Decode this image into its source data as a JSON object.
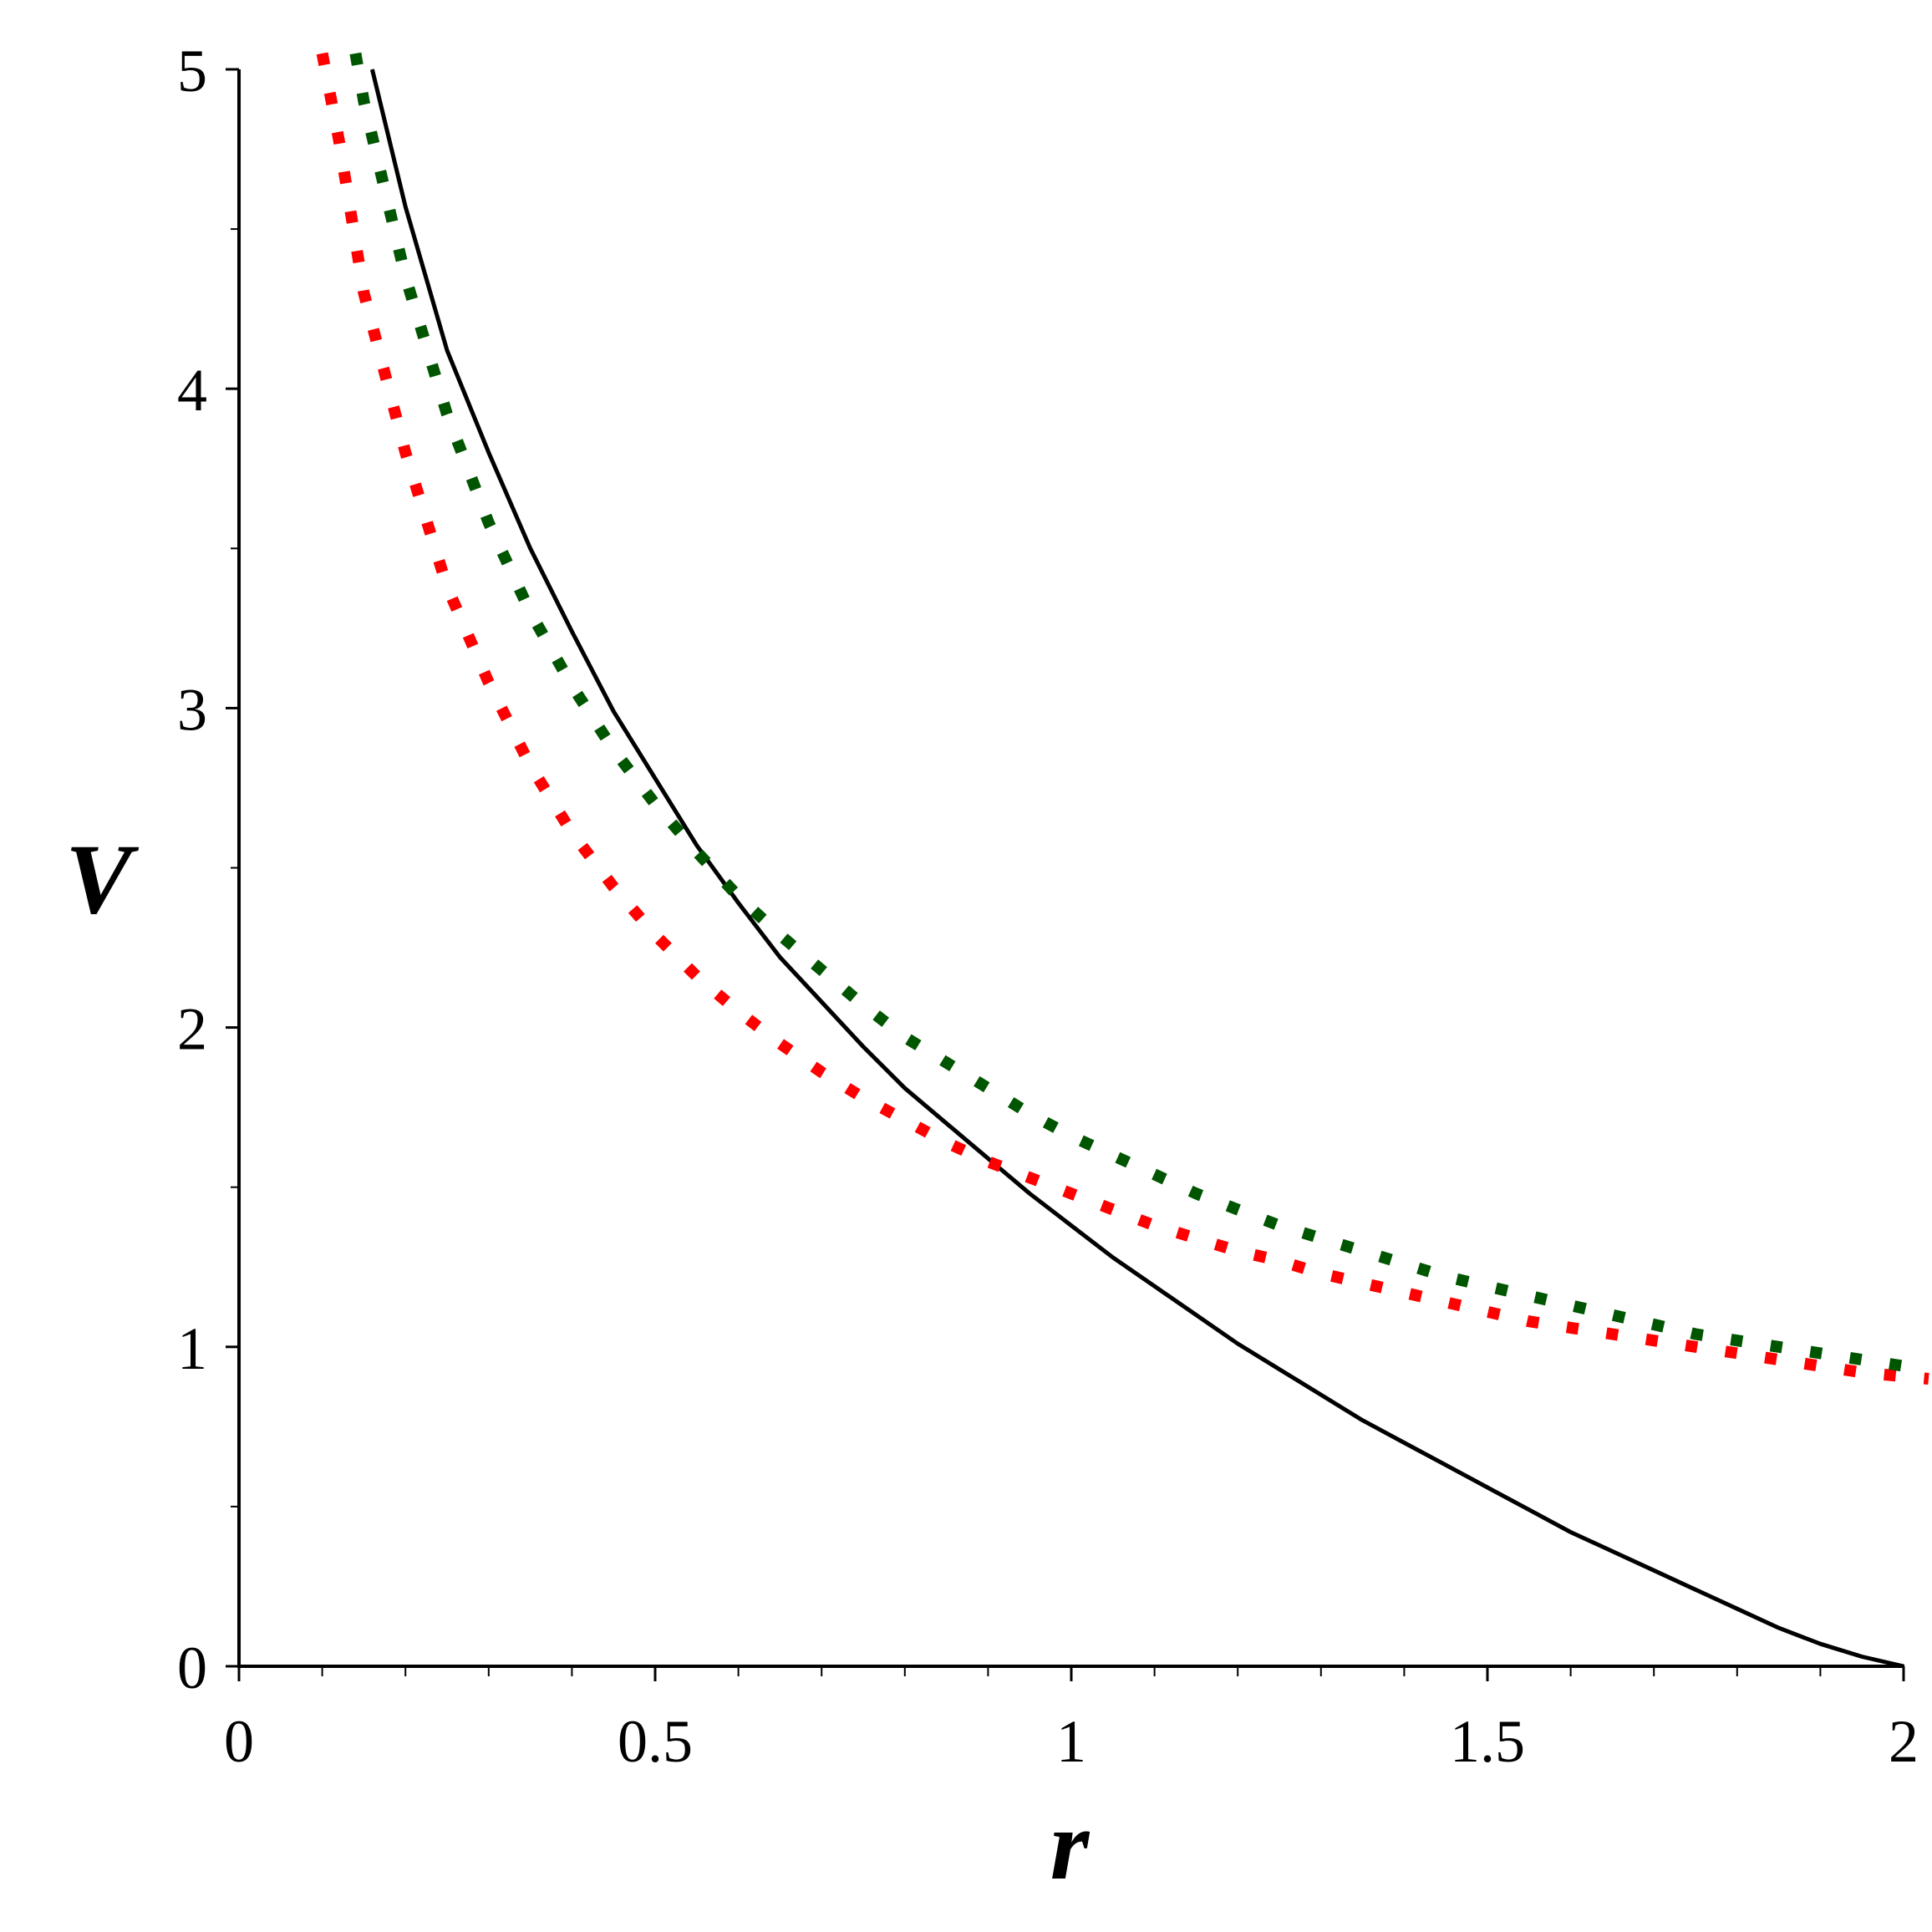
{
  "chart_data": {
    "type": "line",
    "xlabel": "r",
    "ylabel": "V",
    "xlim": [
      0,
      2
    ],
    "ylim": [
      0,
      5
    ],
    "x_ticks": [
      {
        "value": 0,
        "label": "0"
      },
      {
        "value": 0.5,
        "label": "0.5"
      },
      {
        "value": 1,
        "label": "1"
      },
      {
        "value": 1.5,
        "label": "1.5"
      },
      {
        "value": 2,
        "label": "2"
      }
    ],
    "y_ticks": [
      {
        "value": 0,
        "label": "0"
      },
      {
        "value": 1,
        "label": "1"
      },
      {
        "value": 2,
        "label": "2"
      },
      {
        "value": 3,
        "label": "3"
      },
      {
        "value": 4,
        "label": "4"
      },
      {
        "value": 5,
        "label": "5"
      }
    ],
    "grid": false,
    "series": [
      {
        "color": "#000000",
        "style": "solid",
        "points": [
          [
            0.16,
            5.0
          ],
          [
            0.2,
            4.57
          ],
          [
            0.25,
            4.12
          ],
          [
            0.3,
            3.8
          ],
          [
            0.35,
            3.5
          ],
          [
            0.4,
            3.24
          ],
          [
            0.45,
            2.99
          ],
          [
            0.5,
            2.78
          ],
          [
            0.55,
            2.57
          ],
          [
            0.6,
            2.39
          ],
          [
            0.65,
            2.22
          ],
          [
            0.7,
            2.08
          ],
          [
            0.75,
            1.94
          ],
          [
            0.8,
            1.81
          ],
          [
            0.85,
            1.7
          ],
          [
            0.9,
            1.59
          ],
          [
            0.95,
            1.48
          ],
          [
            1.0,
            1.38
          ],
          [
            1.05,
            1.28
          ],
          [
            1.1,
            1.19
          ],
          [
            1.15,
            1.1
          ],
          [
            1.2,
            1.01
          ],
          [
            1.25,
            0.93
          ],
          [
            1.3,
            0.85
          ],
          [
            1.35,
            0.77
          ],
          [
            1.4,
            0.7
          ],
          [
            1.45,
            0.63
          ],
          [
            1.5,
            0.56
          ],
          [
            1.55,
            0.49
          ],
          [
            1.6,
            0.42
          ],
          [
            1.65,
            0.36
          ],
          [
            1.7,
            0.3
          ],
          [
            1.75,
            0.24
          ],
          [
            1.8,
            0.18
          ],
          [
            1.85,
            0.12
          ],
          [
            1.9,
            0.07
          ],
          [
            1.95,
            0.03
          ],
          [
            2.0,
            0.0
          ]
        ]
      },
      {
        "color": "#ff0000",
        "style": "dotted",
        "points": [
          [
            0.1,
            5.05
          ],
          [
            0.12,
            4.78
          ],
          [
            0.15,
            4.3
          ],
          [
            0.2,
            3.8
          ],
          [
            0.25,
            3.38
          ],
          [
            0.3,
            3.08
          ],
          [
            0.35,
            2.82
          ],
          [
            0.4,
            2.61
          ],
          [
            0.45,
            2.44
          ],
          [
            0.5,
            2.29
          ],
          [
            0.55,
            2.16
          ],
          [
            0.6,
            2.05
          ],
          [
            0.65,
            1.95
          ],
          [
            0.7,
            1.86
          ],
          [
            0.75,
            1.78
          ],
          [
            0.8,
            1.71
          ],
          [
            0.85,
            1.64
          ],
          [
            0.9,
            1.58
          ],
          [
            0.95,
            1.53
          ],
          [
            1.0,
            1.48
          ],
          [
            1.05,
            1.43
          ],
          [
            1.1,
            1.38
          ],
          [
            1.15,
            1.34
          ],
          [
            1.2,
            1.3
          ],
          [
            1.25,
            1.27
          ],
          [
            1.3,
            1.23
          ],
          [
            1.35,
            1.2
          ],
          [
            1.4,
            1.17
          ],
          [
            1.45,
            1.14
          ],
          [
            1.5,
            1.11
          ],
          [
            1.55,
            1.08
          ],
          [
            1.6,
            1.06
          ],
          [
            1.65,
            1.04
          ],
          [
            1.7,
            1.02
          ],
          [
            1.75,
            1.0
          ],
          [
            1.8,
            0.98
          ],
          [
            1.85,
            0.96
          ],
          [
            1.9,
            0.94
          ],
          [
            1.95,
            0.92
          ],
          [
            2.03,
            0.9
          ]
        ]
      },
      {
        "color": "#005500",
        "style": "dotted",
        "points": [
          [
            0.14,
            5.05
          ],
          [
            0.15,
            4.9
          ],
          [
            0.2,
            4.35
          ],
          [
            0.25,
            3.92
          ],
          [
            0.3,
            3.58
          ],
          [
            0.35,
            3.3
          ],
          [
            0.4,
            3.07
          ],
          [
            0.45,
            2.87
          ],
          [
            0.5,
            2.7
          ],
          [
            0.55,
            2.55
          ],
          [
            0.6,
            2.41
          ],
          [
            0.65,
            2.29
          ],
          [
            0.7,
            2.18
          ],
          [
            0.75,
            2.07
          ],
          [
            0.8,
            1.97
          ],
          [
            0.85,
            1.89
          ],
          [
            0.9,
            1.81
          ],
          [
            0.95,
            1.73
          ],
          [
            1.0,
            1.66
          ],
          [
            1.05,
            1.6
          ],
          [
            1.1,
            1.54
          ],
          [
            1.15,
            1.48
          ],
          [
            1.2,
            1.43
          ],
          [
            1.25,
            1.38
          ],
          [
            1.3,
            1.34
          ],
          [
            1.35,
            1.3
          ],
          [
            1.4,
            1.26
          ],
          [
            1.45,
            1.22
          ],
          [
            1.5,
            1.19
          ],
          [
            1.55,
            1.16
          ],
          [
            1.6,
            1.13
          ],
          [
            1.65,
            1.1
          ],
          [
            1.7,
            1.07
          ],
          [
            1.75,
            1.04
          ],
          [
            1.8,
            1.02
          ],
          [
            1.85,
            1.0
          ],
          [
            1.9,
            0.98
          ],
          [
            1.95,
            0.96
          ],
          [
            2.0,
            0.94
          ]
        ]
      }
    ]
  }
}
